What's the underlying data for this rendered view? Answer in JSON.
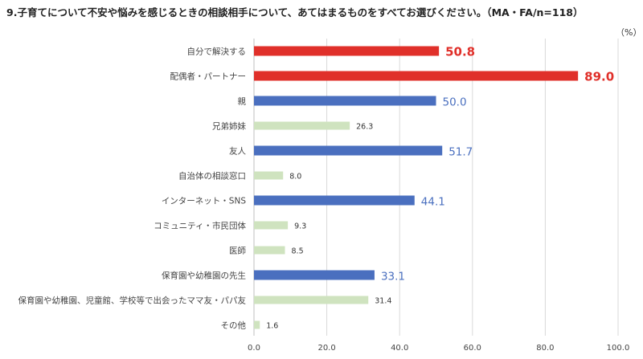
{
  "title": "9.子育てについて不安や悩みを感じるときの相談相手について、あてはまるものをすべてお選びください。（MA・FA/n=118）",
  "unit": "（%）",
  "colors": {
    "high": "#e0302a",
    "mid": "#4a6fbf",
    "low": "#cfe3bf",
    "grid": "#d9d9d9",
    "axis": "#bfbfbf"
  },
  "chart_data": {
    "type": "bar",
    "orientation": "horizontal",
    "categories": [
      "自分で解決する",
      "配偶者・パートナー",
      "親",
      "兄弟姉妹",
      "友人",
      "自治体の相談窓口",
      "インターネット・SNS",
      "コミュニティ・市民団体",
      "医師",
      "保育園や幼稚園の先生",
      "保育園や幼稚園、児童館、学校等で出会ったママ友・パパ友",
      "その他"
    ],
    "values": [
      50.8,
      89.0,
      50.0,
      26.3,
      51.7,
      8.0,
      44.1,
      9.3,
      8.5,
      33.1,
      31.4,
      1.6
    ],
    "value_labels": [
      "50.8",
      "89.0",
      "50.0",
      "26.3",
      "51.7",
      "8.0",
      "44.1",
      "9.3",
      "8.5",
      "33.1",
      "31.4",
      "1.6"
    ],
    "bar_color_groups": [
      "high",
      "high",
      "mid",
      "low",
      "mid",
      "low",
      "mid",
      "low",
      "low",
      "mid",
      "low",
      "low"
    ],
    "xlim": [
      0,
      100
    ],
    "x_ticks": [
      "0.0",
      "20.0",
      "40.0",
      "60.0",
      "80.0",
      "100.0"
    ],
    "grid": true
  }
}
